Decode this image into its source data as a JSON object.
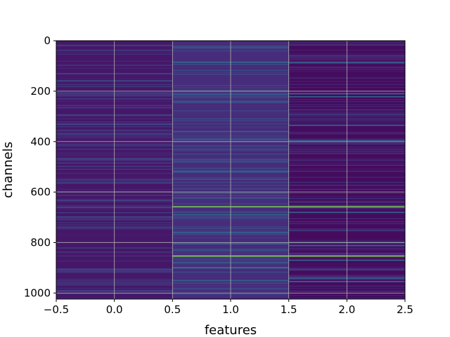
{
  "chart_data": {
    "type": "heatmap",
    "title": "",
    "xlabel": "features",
    "ylabel": "channels",
    "xlim": [
      -0.5,
      2.5
    ],
    "ylim": [
      1024,
      0
    ],
    "y_inverted": true,
    "grid": true,
    "colormap": "viridis",
    "x_ticks": [
      -0.5,
      0.0,
      0.5,
      1.0,
      1.5,
      2.0,
      2.5
    ],
    "x_tick_labels": [
      "−0.5",
      "0.0",
      "0.5",
      "1.0",
      "1.5",
      "2.0",
      "2.5"
    ],
    "y_ticks": [
      0,
      200,
      400,
      600,
      800,
      1000
    ],
    "y_tick_labels": [
      "0",
      "200",
      "400",
      "600",
      "800",
      "1000"
    ],
    "columns": [
      {
        "feature": 0,
        "base": 0.08,
        "highlights": [
          {
            "channel": 330,
            "value": 0.28
          },
          {
            "channel": 470,
            "value": 0.22
          },
          {
            "channel": 660,
            "value": 0.3
          },
          {
            "channel": 700,
            "value": 0.22
          },
          {
            "channel": 905,
            "value": 0.24
          },
          {
            "channel": 990,
            "value": 0.22
          }
        ]
      },
      {
        "feature": 1,
        "base": 0.16,
        "highlights": [
          {
            "channel": 85,
            "value": 0.45
          },
          {
            "channel": 200,
            "value": 0.4
          },
          {
            "channel": 214,
            "value": 0.36
          },
          {
            "channel": 360,
            "value": 0.4
          },
          {
            "channel": 390,
            "value": 0.36
          },
          {
            "channel": 480,
            "value": 0.35
          },
          {
            "channel": 520,
            "value": 0.4
          },
          {
            "channel": 658,
            "value": 0.85
          },
          {
            "channel": 690,
            "value": 0.4
          },
          {
            "channel": 760,
            "value": 0.38
          },
          {
            "channel": 805,
            "value": 0.42
          },
          {
            "channel": 853,
            "value": 0.88
          },
          {
            "channel": 880,
            "value": 0.4
          },
          {
            "channel": 900,
            "value": 0.5
          },
          {
            "channel": 950,
            "value": 0.4
          }
        ]
      },
      {
        "feature": 2,
        "base": 0.04,
        "highlights": [
          {
            "channel": 85,
            "value": 0.4
          },
          {
            "channel": 210,
            "value": 0.45
          },
          {
            "channel": 222,
            "value": 0.4
          },
          {
            "channel": 335,
            "value": 0.45
          },
          {
            "channel": 395,
            "value": 0.38
          },
          {
            "channel": 658,
            "value": 0.85
          },
          {
            "channel": 680,
            "value": 0.4
          },
          {
            "channel": 800,
            "value": 0.45
          },
          {
            "channel": 812,
            "value": 0.42
          },
          {
            "channel": 853,
            "value": 0.88
          },
          {
            "channel": 870,
            "value": 0.4
          },
          {
            "channel": 940,
            "value": 0.45
          },
          {
            "channel": 955,
            "value": 0.4
          }
        ]
      }
    ]
  }
}
